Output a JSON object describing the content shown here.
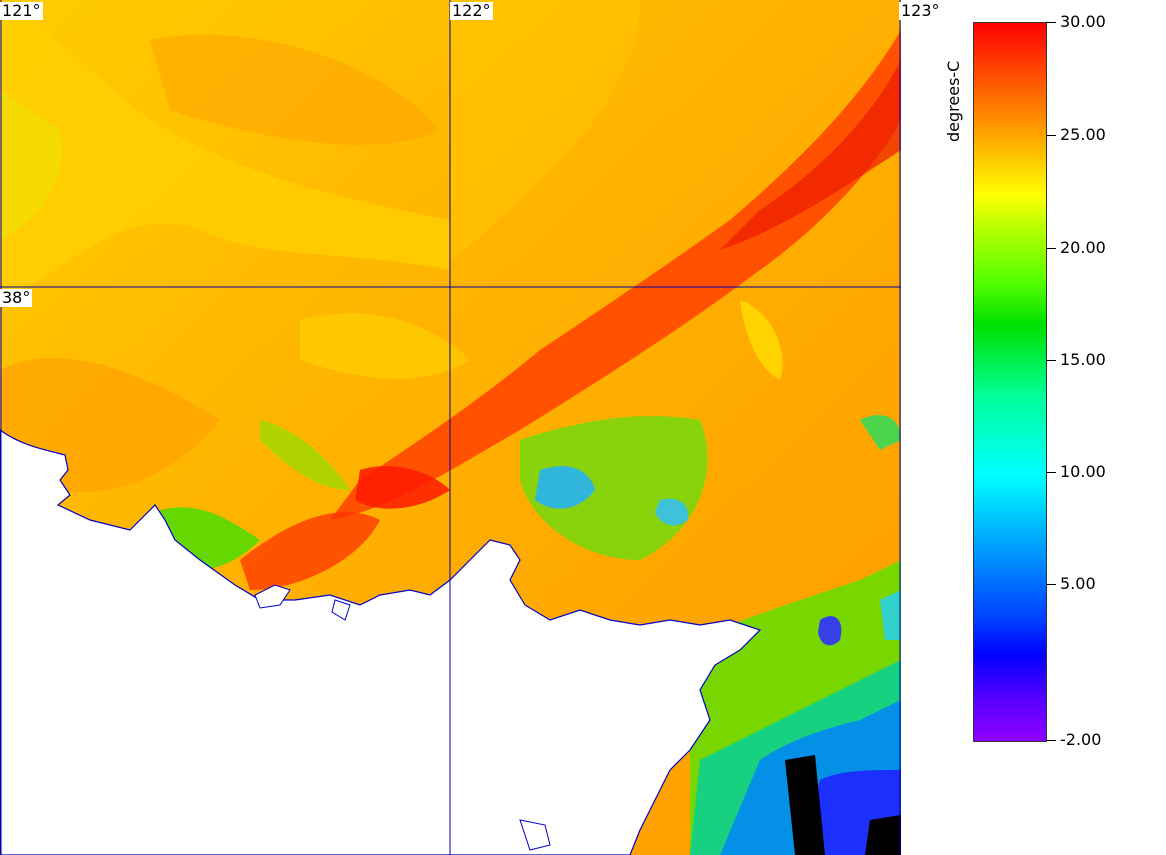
{
  "map": {
    "lon_labels": [
      "121°",
      "122°",
      "123°"
    ],
    "lat_labels": [
      "38°"
    ],
    "grid_color": "#0000aa",
    "coast_color": "#0000cc",
    "land_color": "#ffffff"
  },
  "colorbar": {
    "unit": "degrees-C",
    "ticks": [
      "30.00",
      "25.00",
      "20.00",
      "15.00",
      "10.00",
      "5.00",
      "-2.00"
    ],
    "min": -2,
    "max": 30,
    "colors": {
      "high": "#ff0000",
      "warm": "#ffa800",
      "mid": "#ffff00",
      "cool": "#00ff00",
      "cold": "#00ffff",
      "colder": "#0000ff",
      "min": "#8f00ff"
    }
  }
}
